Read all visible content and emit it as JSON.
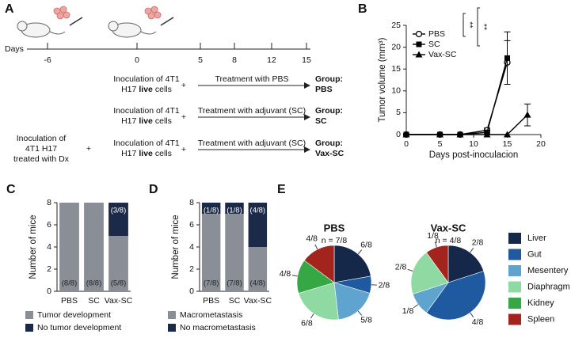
{
  "timeline": {
    "label": "A",
    "axis_label": "Days",
    "ticks": [
      "-6",
      "0",
      "5",
      "8",
      "12",
      "15"
    ],
    "rows": [
      {
        "line1": "Inoculation of 4T1",
        "h17": "H17",
        "live": "live",
        "cells": "cells",
        "plus": "+",
        "treatment": "Treatment with PBS",
        "group": "Group:",
        "group_name": "PBS"
      },
      {
        "line1": "Inoculation of 4T1",
        "h17": "H17",
        "live": "live",
        "cells": "cells",
        "plus": "+",
        "treatment": "Treatment with adjuvant (SC)",
        "group": "Group:",
        "group_name": "SC"
      },
      {
        "pre": [
          "Inoculation of",
          "4T1 H17",
          "treated with Dx"
        ],
        "pre_plus": "+",
        "line1": "Inoculation of 4T1",
        "h17": "H17",
        "live": "live",
        "cells": "cells",
        "plus": "+",
        "treatment": "Treatment with adjuvant (SC)",
        "group": "Group:",
        "group_name": "Vax-SC"
      }
    ]
  },
  "chart_data": [
    {
      "type": "line",
      "label": "B",
      "ylabel": "Tumor volume (mm³)",
      "xlabel": "Days post-inoculacion",
      "xlim": [
        0,
        20
      ],
      "xticks": [
        0,
        5,
        10,
        15,
        20
      ],
      "ylim": [
        0,
        25
      ],
      "yticks": [
        0,
        5,
        10,
        15,
        20,
        25
      ],
      "series": [
        {
          "name": "PBS",
          "color": "#000000",
          "marker": "circle-open",
          "x": [
            0,
            5,
            8,
            12,
            15
          ],
          "values": [
            0,
            0,
            0,
            1,
            16.5
          ],
          "errors": [
            0,
            0,
            0,
            0.5,
            5
          ]
        },
        {
          "name": "SC",
          "color": "#000000",
          "marker": "square",
          "x": [
            0,
            5,
            8,
            12,
            15
          ],
          "values": [
            0,
            0,
            0,
            0.5,
            17.5
          ],
          "errors": [
            0,
            0,
            0,
            0.3,
            6
          ]
        },
        {
          "name": "Vax-SC",
          "color": "#000000",
          "marker": "triangle",
          "x": [
            0,
            5,
            8,
            12,
            15,
            18
          ],
          "values": [
            0,
            0,
            0,
            0,
            0,
            4.5
          ],
          "errors": [
            0,
            0,
            0,
            0,
            0,
            2.5
          ]
        }
      ],
      "annotations": [
        "**",
        "**"
      ]
    },
    {
      "type": "bar",
      "stacked": true,
      "label": "C",
      "ylabel": "Number of mice",
      "categories": [
        "PBS",
        "SC",
        "Vax-SC"
      ],
      "ylim": [
        0,
        8
      ],
      "yticks": [
        0,
        2,
        4,
        6,
        8
      ],
      "series": [
        {
          "name": "Tumor development",
          "color": "#8a8e97",
          "values": [
            8,
            8,
            5
          ],
          "value_labels": [
            "(8/8)",
            "(8/8)",
            "(5/8)"
          ]
        },
        {
          "name": "No tumor development",
          "color": "#1c2a4a",
          "values": [
            0,
            0,
            3
          ],
          "value_labels": [
            null,
            null,
            "(3/8)"
          ]
        }
      ]
    },
    {
      "type": "bar",
      "stacked": true,
      "label": "D",
      "ylabel": "Number of mice",
      "categories": [
        "PBS",
        "SC",
        "Vax-SC"
      ],
      "ylim": [
        0,
        8
      ],
      "yticks": [
        0,
        2,
        4,
        6,
        8
      ],
      "series": [
        {
          "name": "Macrometastasis",
          "color": "#8a8e97",
          "values": [
            7,
            7,
            4
          ],
          "value_labels": [
            "(7/8)",
            "(7/8)",
            "(4/8)"
          ]
        },
        {
          "name": "No macrometastasis",
          "color": "#1c2a4a",
          "values": [
            1,
            1,
            4
          ],
          "value_labels": [
            "(1/8)",
            "(1/8)",
            "(4/8)"
          ]
        }
      ]
    },
    {
      "type": "pie",
      "label": "E",
      "categories": [
        "Liver",
        "Gut",
        "Mesentery",
        "Diaphragm",
        "Kidney",
        "Spleen"
      ],
      "colors": [
        "#15284a",
        "#1f5aa0",
        "#5ea4cf",
        "#8fd9a2",
        "#35a845",
        "#a3241c"
      ],
      "pies": [
        {
          "title": "PBS",
          "subtitle": "n = 7/8",
          "values": [
            0.75,
            0.25,
            0.625,
            0.75,
            0.5,
            0.5
          ],
          "value_labels": [
            "6/8",
            "2/8",
            "5/8",
            "6/8",
            "4/8",
            "4/8"
          ]
        },
        {
          "title": "Vax-SC",
          "subtitle": "n = 4/8",
          "values": [
            0.25,
            0.5,
            0.125,
            0.25,
            0,
            0.125
          ],
          "value_labels": [
            "2/8",
            "4/8",
            "1/8",
            "2/8",
            null,
            "1/8"
          ]
        }
      ]
    }
  ]
}
